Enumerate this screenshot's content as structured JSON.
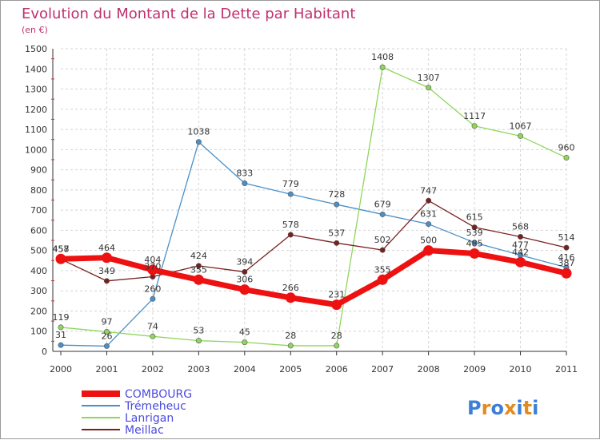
{
  "title": "Evolution du Montant de la Dette par Habitant",
  "unit": "(en €)",
  "logo": {
    "letters": [
      "P",
      "r",
      "o",
      "x",
      "i",
      "t",
      "i"
    ],
    "colors": [
      "#3d7fd6",
      "#e38b1f",
      "#3d7fd6",
      "#e38b1f",
      "#3d7fd6",
      "#e38b1f",
      "#3d7fd6"
    ]
  },
  "chart_data": {
    "type": "line",
    "title": "Evolution du Montant de la Dette par Habitant",
    "ylabel": "(en €)",
    "xlabel": "",
    "ylim": [
      0,
      1500
    ],
    "ytick_step": 100,
    "grid": true,
    "legend_position": "bottom-left",
    "x": [
      "2000",
      "2001",
      "2002",
      "2003",
      "2004",
      "2005",
      "2006",
      "2007",
      "2008",
      "2009",
      "2010",
      "2011"
    ],
    "series": [
      {
        "name": "Trémeheuc",
        "color": "#4a90c8",
        "values": [
          31,
          26,
          260,
          1038,
          833,
          779,
          728,
          679,
          631,
          539,
          477,
          416
        ]
      },
      {
        "name": "Lanrigan",
        "color": "#8fd65a",
        "values": [
          119,
          97,
          74,
          53,
          45,
          28,
          28,
          1408,
          1307,
          1117,
          1067,
          960
        ]
      },
      {
        "name": "Meillac",
        "color": "#7a1f1f",
        "values": [
          457,
          349,
          370,
          424,
          394,
          578,
          537,
          502,
          747,
          615,
          568,
          514
        ]
      },
      {
        "name": "COMBOURG",
        "color": "#ee1111",
        "values": [
          458,
          464,
          404,
          355,
          306,
          266,
          231,
          355,
          500,
          485,
          442,
          387
        ]
      }
    ]
  }
}
